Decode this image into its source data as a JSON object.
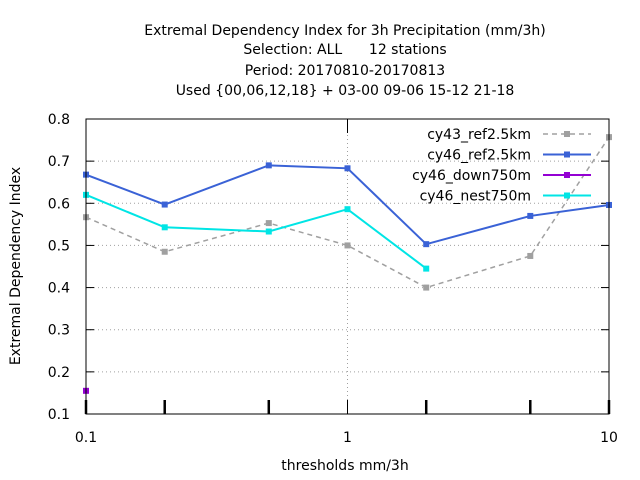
{
  "chart_data": {
    "type": "line",
    "title_lines": [
      "Extremal Dependency Index  for 3h Precipitation (mm/3h)",
      "Selection: ALL      12 stations",
      "Period: 20170810-20170813",
      "Used {00,06,12,18} + 03-00 09-06 15-12 21-18"
    ],
    "xlabel": "thresholds mm/3h",
    "ylabel": "Extremal Dependency Index",
    "x_scale": "log",
    "xlim": [
      0.1,
      10
    ],
    "ylim": [
      0.1,
      0.8
    ],
    "x_ticks": [
      {
        "value": 0.1,
        "label": "0.1"
      },
      {
        "value": 1,
        "label": "1"
      },
      {
        "value": 10,
        "label": "10"
      }
    ],
    "y_ticks": [
      {
        "value": 0.1,
        "label": "0.1"
      },
      {
        "value": 0.2,
        "label": "0.2"
      },
      {
        "value": 0.3,
        "label": "0.3"
      },
      {
        "value": 0.4,
        "label": "0.4"
      },
      {
        "value": 0.5,
        "label": "0.5"
      },
      {
        "value": 0.6,
        "label": "0.6"
      },
      {
        "value": 0.7,
        "label": "0.7"
      },
      {
        "value": 0.8,
        "label": "0.8"
      }
    ],
    "grid": true,
    "legend_position": "top-right",
    "series": [
      {
        "name": "cy43_ref2.5km",
        "color": "#a0a0a0",
        "dashed": true,
        "x": [
          0.1,
          0.2,
          0.5,
          1,
          2,
          5,
          10
        ],
        "y": [
          0.567,
          0.485,
          0.553,
          0.5,
          0.4,
          0.475,
          0.757
        ]
      },
      {
        "name": "cy46_ref2.5km",
        "color": "#3a62d6",
        "dashed": false,
        "x": [
          0.1,
          0.2,
          0.5,
          1,
          2,
          5,
          10
        ],
        "y": [
          0.668,
          0.597,
          0.69,
          0.683,
          0.503,
          0.57,
          0.596
        ]
      },
      {
        "name": "cy46_down750m",
        "color": "#9400d3",
        "dashed": false,
        "x": [
          0.1
        ],
        "y": [
          0.155
        ]
      },
      {
        "name": "cy46_nest750m",
        "color": "#00e5e5",
        "dashed": false,
        "x": [
          0.1,
          0.2,
          0.5,
          1,
          2
        ],
        "y": [
          0.62,
          0.543,
          0.533,
          0.586,
          0.445
        ]
      }
    ]
  }
}
